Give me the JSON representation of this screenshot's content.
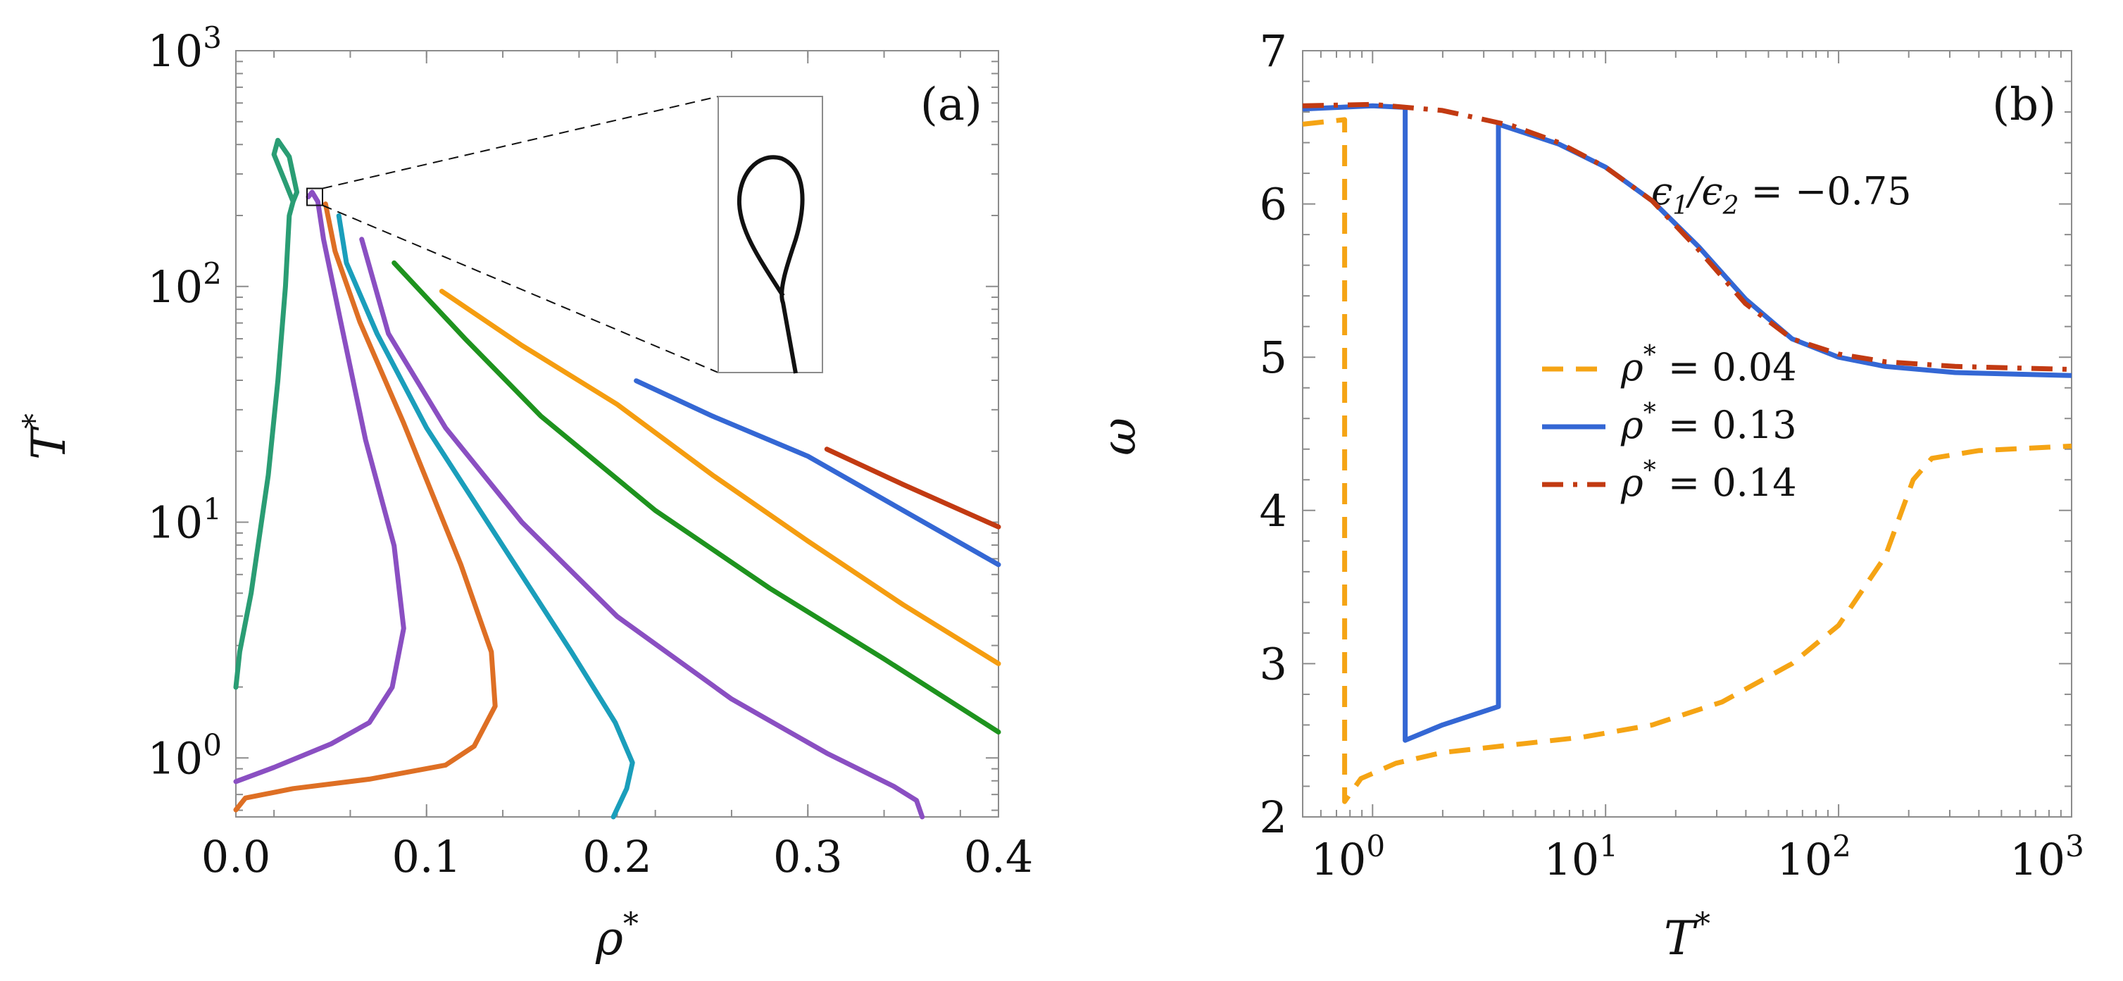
{
  "chart_data": [
    {
      "type": "line",
      "panel": "(a)",
      "xlabel": "ρ*",
      "ylabel": "T*",
      "xlim": [
        0.0,
        0.4
      ],
      "ylim_log10": [
        -0.25,
        3.0
      ],
      "yscale": "log",
      "x_ticks": [
        "0.0",
        "0.1",
        "0.2",
        "0.3",
        "0.4"
      ],
      "y_ticks": [
        {
          "base": "10",
          "exp": "0"
        },
        {
          "base": "10",
          "exp": "1"
        },
        {
          "base": "10",
          "exp": "2"
        },
        {
          "base": "10",
          "exp": "3"
        }
      ],
      "series": [
        {
          "name": "curve-teal-loop",
          "color": "#2a9d74",
          "points": [
            [
              0.0,
              0.3
            ],
            [
              0.002,
              0.45
            ],
            [
              0.008,
              0.7
            ],
            [
              0.017,
              1.2
            ],
            [
              0.022,
              1.6
            ],
            [
              0.026,
              2.0
            ],
            [
              0.028,
              2.3
            ],
            [
              0.03,
              2.36
            ],
            [
              0.026,
              2.44
            ],
            [
              0.02,
              2.56
            ],
            [
              0.022,
              2.62
            ],
            [
              0.028,
              2.55
            ],
            [
              0.032,
              2.4
            ],
            [
              0.03,
              2.36
            ]
          ]
        },
        {
          "name": "curve-purple-inner",
          "color": "#8a4fc2",
          "points": [
            [
              0.0,
              -0.1
            ],
            [
              0.02,
              -0.04
            ],
            [
              0.05,
              0.06
            ],
            [
              0.07,
              0.15
            ],
            [
              0.082,
              0.3
            ],
            [
              0.088,
              0.55
            ],
            [
              0.083,
              0.9
            ],
            [
              0.068,
              1.35
            ],
            [
              0.055,
              1.85
            ],
            [
              0.046,
              2.2
            ],
            [
              0.043,
              2.36
            ],
            [
              0.04,
              2.4
            ],
            [
              0.038,
              2.38
            ]
          ]
        },
        {
          "name": "curve-orange-dark",
          "color": "#de6f24",
          "points": [
            [
              0.0,
              -0.22
            ],
            [
              0.005,
              -0.17
            ],
            [
              0.03,
              -0.13
            ],
            [
              0.07,
              -0.09
            ],
            [
              0.11,
              -0.03
            ],
            [
              0.125,
              0.05
            ],
            [
              0.136,
              0.22
            ],
            [
              0.134,
              0.45
            ],
            [
              0.118,
              0.82
            ],
            [
              0.088,
              1.42
            ],
            [
              0.065,
              1.85
            ],
            [
              0.052,
              2.15
            ],
            [
              0.047,
              2.35
            ]
          ]
        },
        {
          "name": "curve-cyan",
          "color": "#1a9ebb",
          "points": [
            [
              0.198,
              -0.25
            ],
            [
              0.205,
              -0.13
            ],
            [
              0.208,
              -0.02
            ],
            [
              0.199,
              0.15
            ],
            [
              0.176,
              0.45
            ],
            [
              0.14,
              0.9
            ],
            [
              0.1,
              1.4
            ],
            [
              0.074,
              1.8
            ],
            [
              0.058,
              2.1
            ],
            [
              0.054,
              2.3
            ]
          ]
        },
        {
          "name": "curve-purple-outer",
          "color": "#8a4fc2",
          "points": [
            [
              0.36,
              -0.25
            ],
            [
              0.357,
              -0.18
            ],
            [
              0.345,
              -0.12
            ],
            [
              0.31,
              0.02
            ],
            [
              0.26,
              0.25
            ],
            [
              0.2,
              0.6
            ],
            [
              0.15,
              1.0
            ],
            [
              0.11,
              1.4
            ],
            [
              0.08,
              1.8
            ],
            [
              0.066,
              2.2
            ]
          ]
        },
        {
          "name": "curve-green",
          "color": "#1e931e",
          "points": [
            [
              0.4,
              0.11
            ],
            [
              0.34,
              0.42
            ],
            [
              0.28,
              0.72
            ],
            [
              0.22,
              1.05
            ],
            [
              0.16,
              1.45
            ],
            [
              0.12,
              1.78
            ],
            [
              0.083,
              2.1
            ]
          ]
        },
        {
          "name": "curve-amber",
          "color": "#f59d10",
          "points": [
            [
              0.4,
              0.4
            ],
            [
              0.35,
              0.65
            ],
            [
              0.3,
              0.92
            ],
            [
              0.25,
              1.2
            ],
            [
              0.2,
              1.5
            ],
            [
              0.15,
              1.75
            ],
            [
              0.108,
              1.98
            ]
          ]
        },
        {
          "name": "curve-blue-panel-a",
          "color": "#3467d4",
          "points": [
            [
              0.4,
              0.82
            ],
            [
              0.35,
              1.05
            ],
            [
              0.3,
              1.28
            ],
            [
              0.25,
              1.45
            ],
            [
              0.21,
              1.6
            ]
          ]
        },
        {
          "name": "curve-red-panel-a",
          "color": "#c23a12",
          "points": [
            [
              0.4,
              0.98
            ],
            [
              0.35,
              1.16
            ],
            [
              0.31,
              1.31
            ]
          ]
        }
      ],
      "inset": {
        "description": "zoom of loop near rho* 0.045, T* 200",
        "color": "#111111"
      }
    },
    {
      "type": "line",
      "panel": "(b)",
      "xlabel": "T*",
      "ylabel": "ω",
      "xscale": "log",
      "xlim_log10": [
        -0.3,
        3.0
      ],
      "ylim": [
        2.0,
        7.0
      ],
      "x_ticks": [
        {
          "base": "10",
          "exp": "0"
        },
        {
          "base": "10",
          "exp": "1"
        },
        {
          "base": "10",
          "exp": "2"
        },
        {
          "base": "10",
          "exp": "3"
        }
      ],
      "y_ticks": [
        "2",
        "3",
        "4",
        "5",
        "6",
        "7"
      ],
      "annotation": {
        "lhs_num": "ϵ",
        "lhs_num_sub": "1",
        "lhs_den": "ϵ",
        "lhs_den_sub": "2",
        "rhs": "−0.75"
      },
      "series": [
        {
          "name": "ρ* = 0.04",
          "label_lhs": "ρ",
          "label_rhs": " = 0.04",
          "color": "#f5a414",
          "dash": "dashed",
          "points": [
            [
              -0.3,
              6.52
            ],
            [
              -0.12,
              6.55
            ],
            [
              -0.12,
              2.1
            ],
            [
              -0.05,
              2.25
            ],
            [
              0.1,
              2.35
            ],
            [
              0.3,
              2.42
            ],
            [
              0.6,
              2.47
            ],
            [
              0.9,
              2.52
            ],
            [
              1.2,
              2.6
            ],
            [
              1.5,
              2.75
            ],
            [
              1.8,
              3.0
            ],
            [
              2.0,
              3.25
            ],
            [
              2.2,
              3.7
            ],
            [
              2.32,
              4.2
            ],
            [
              2.4,
              4.34
            ],
            [
              2.6,
              4.39
            ],
            [
              3.0,
              4.42
            ]
          ]
        },
        {
          "name": "ρ* = 0.13",
          "label_lhs": "ρ",
          "label_rhs": " = 0.13",
          "color": "#3467d4",
          "dash": "solid",
          "points": [
            [
              -0.3,
              6.62
            ],
            [
              0.0,
              6.64
            ],
            [
              0.14,
              6.63
            ],
            [
              0.14,
              2.5
            ],
            [
              0.3,
              2.6
            ],
            [
              0.54,
              2.72
            ],
            [
              0.54,
              6.52
            ],
            [
              0.8,
              6.39
            ],
            [
              1.0,
              6.24
            ],
            [
              1.2,
              6.02
            ],
            [
              1.4,
              5.72
            ],
            [
              1.6,
              5.38
            ],
            [
              1.8,
              5.12
            ],
            [
              2.0,
              5.0
            ],
            [
              2.2,
              4.94
            ],
            [
              2.5,
              4.9
            ],
            [
              3.0,
              4.88
            ]
          ]
        },
        {
          "name": "ρ* = 0.14",
          "label_lhs": "ρ",
          "label_rhs": " = 0.14",
          "color": "#c23a12",
          "dash": "dashdot",
          "points": [
            [
              -0.3,
              6.64
            ],
            [
              0.0,
              6.65
            ],
            [
              0.3,
              6.61
            ],
            [
              0.6,
              6.51
            ],
            [
              0.8,
              6.4
            ],
            [
              1.0,
              6.24
            ],
            [
              1.2,
              6.02
            ],
            [
              1.4,
              5.7
            ],
            [
              1.6,
              5.35
            ],
            [
              1.8,
              5.12
            ],
            [
              2.0,
              5.02
            ],
            [
              2.2,
              4.97
            ],
            [
              2.5,
              4.94
            ],
            [
              3.0,
              4.92
            ]
          ]
        }
      ]
    }
  ]
}
